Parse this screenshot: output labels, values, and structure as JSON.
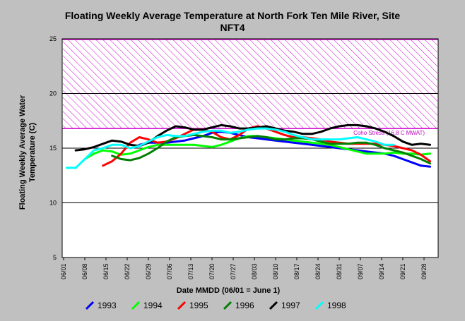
{
  "chart_data": {
    "type": "line",
    "title_line1": "Floating Weekly Average Temperature at North Fork Ten Mile River, Site",
    "title_line2": "NFT4",
    "xlabel": "Date MMDD (06/01 = June 1)",
    "ylabel_line1": "Floating Weekly Average Water",
    "ylabel_line2": "Temperature (C)",
    "ylim": [
      5,
      25
    ],
    "yticks": [
      "5",
      "10",
      "15",
      "20",
      "25"
    ],
    "categories": [
      "06/01",
      "06/08",
      "06/15",
      "06/22",
      "06/29",
      "07/06",
      "07/13",
      "07/20",
      "07/27",
      "08/03",
      "08/10",
      "08/17",
      "08/24",
      "08/31",
      "09/07",
      "09/14",
      "09/21",
      "09/28"
    ],
    "grid": "horizontal at 10, 15, 20",
    "stress_band": {
      "low": 16.8,
      "high": 25,
      "label": "Coho Stress (16.8 C MWAT)",
      "color": "#cc00cc"
    },
    "series": [
      {
        "name": "1993",
        "color": "#0000ff",
        "x": [
          25,
          28,
          31,
          34,
          37,
          40,
          43,
          46,
          49,
          52,
          55,
          58,
          61,
          64,
          67,
          70,
          73,
          76,
          79,
          82,
          85,
          88,
          91,
          94,
          97,
          100,
          103,
          106,
          109,
          112,
          115,
          118,
          121
        ],
        "values": [
          15.3,
          15.5,
          15.5,
          15.5,
          15.6,
          15.7,
          15.9,
          16.1,
          16.4,
          16.5,
          16.4,
          16.2,
          16.0,
          15.9,
          15.8,
          15.7,
          15.6,
          15.5,
          15.4,
          15.3,
          15.2,
          15.1,
          15.0,
          14.9,
          14.8,
          14.7,
          14.6,
          14.5,
          14.3,
          14.0,
          13.7,
          13.4,
          13.3
        ]
      },
      {
        "name": "1994",
        "color": "#00ff00",
        "x": [
          7,
          10,
          13,
          16,
          19,
          22,
          25,
          28,
          31,
          34,
          37,
          40,
          43,
          46,
          49,
          52,
          55,
          58,
          61,
          64,
          67,
          70,
          73,
          76,
          79,
          82,
          85,
          88,
          91,
          94,
          97,
          100,
          103,
          106,
          109,
          112,
          115,
          118,
          121
        ],
        "values": [
          14.0,
          14.5,
          14.8,
          14.7,
          14.4,
          14.5,
          14.8,
          15.1,
          15.3,
          15.3,
          15.3,
          15.3,
          15.3,
          15.2,
          15.1,
          15.3,
          15.6,
          15.9,
          16.1,
          16.1,
          16.0,
          15.9,
          15.8,
          15.7,
          15.6,
          15.5,
          15.4,
          15.3,
          15.1,
          14.9,
          14.7,
          14.5,
          14.5,
          14.5,
          14.6,
          14.5,
          14.5,
          14.4,
          14.5
        ]
      },
      {
        "name": "1995",
        "color": "#ff0000",
        "x": [
          13,
          16,
          19,
          22,
          25,
          28,
          31,
          34,
          37,
          40,
          43,
          46,
          49,
          52,
          55,
          58,
          61,
          64,
          67,
          70,
          73,
          76,
          79,
          82,
          85,
          88,
          91,
          94,
          97,
          100,
          103,
          106,
          109,
          112,
          115,
          118,
          121
        ],
        "values": [
          13.4,
          13.8,
          14.5,
          15.5,
          16.0,
          15.8,
          15.5,
          15.6,
          15.9,
          16.3,
          16.7,
          16.7,
          16.5,
          16.0,
          15.8,
          16.2,
          16.8,
          17.0,
          16.8,
          16.5,
          16.2,
          16.0,
          16.0,
          15.9,
          15.8,
          15.6,
          15.5,
          15.4,
          15.4,
          15.4,
          15.4,
          15.3,
          15.2,
          15.0,
          14.8,
          14.4,
          13.8
        ]
      },
      {
        "name": "1996",
        "color": "#008000",
        "x": [
          16,
          19,
          22,
          25,
          28,
          31,
          34,
          37,
          40,
          43,
          46,
          49,
          52,
          55,
          58,
          61,
          64,
          67,
          70,
          73,
          76,
          79,
          82,
          85,
          88,
          91,
          94,
          97,
          100,
          103,
          106,
          109,
          112,
          115,
          118,
          121
        ],
        "values": [
          14.3,
          14.0,
          13.9,
          14.1,
          14.5,
          15.0,
          15.6,
          16.0,
          16.1,
          16.2,
          16.1,
          16.0,
          15.8,
          15.8,
          15.9,
          16.0,
          16.1,
          16.0,
          15.8,
          15.8,
          15.9,
          15.9,
          15.8,
          15.6,
          15.4,
          15.4,
          15.4,
          15.5,
          15.5,
          15.3,
          15.0,
          14.8,
          14.6,
          14.3,
          14.0,
          13.6
        ]
      },
      {
        "name": "1997",
        "color": "#000000",
        "x": [
          4,
          7,
          10,
          13,
          16,
          19,
          22,
          25,
          28,
          31,
          34,
          37,
          40,
          43,
          46,
          49,
          52,
          55,
          58,
          61,
          64,
          67,
          70,
          73,
          76,
          79,
          82,
          85,
          88,
          91,
          94,
          97,
          100,
          103,
          106,
          109,
          112,
          115,
          118,
          121
        ],
        "values": [
          14.8,
          14.9,
          15.1,
          15.4,
          15.7,
          15.6,
          15.3,
          15.2,
          15.5,
          16.1,
          16.6,
          17.0,
          16.9,
          16.7,
          16.7,
          16.9,
          17.1,
          17.0,
          16.8,
          16.8,
          16.9,
          17.0,
          16.8,
          16.6,
          16.5,
          16.3,
          16.3,
          16.5,
          16.8,
          17.0,
          17.1,
          17.1,
          17.0,
          16.8,
          16.5,
          16.1,
          15.6,
          15.3,
          15.4,
          15.3
        ]
      },
      {
        "name": "1998",
        "color": "#00ffff",
        "x": [
          1,
          4,
          7,
          10,
          13,
          16,
          19,
          22,
          25,
          28,
          31,
          34,
          37,
          40,
          43,
          46,
          49,
          52,
          55,
          58,
          61,
          64,
          67,
          70,
          73,
          76,
          79,
          82,
          85,
          88,
          91,
          94,
          97,
          100,
          103,
          106,
          109
        ],
        "values": [
          13.2,
          13.2,
          14.0,
          14.8,
          15.0,
          15.3,
          15.3,
          15.0,
          15.2,
          15.6,
          16.0,
          16.2,
          16.1,
          16.1,
          16.3,
          16.5,
          16.6,
          16.6,
          16.4,
          16.5,
          16.7,
          16.8,
          16.8,
          16.7,
          16.5,
          16.2,
          16.0,
          15.8,
          15.8,
          15.8,
          15.8,
          15.9,
          16.0,
          15.8,
          15.6,
          15.3,
          15.3
        ]
      }
    ]
  }
}
